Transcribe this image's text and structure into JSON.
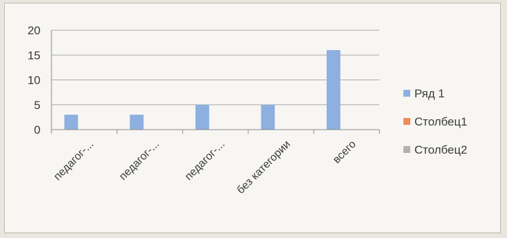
{
  "chart_data": {
    "type": "bar",
    "categories": [
      "педагог-...",
      "педагог-...",
      "педагог-...",
      "без категории",
      "всего"
    ],
    "series": [
      {
        "name": "Ряд 1",
        "values": [
          3,
          3,
          5,
          5,
          16
        ],
        "color": "#8eb0e0"
      },
      {
        "name": "Столбец1",
        "values": [
          null,
          null,
          null,
          null,
          null
        ],
        "color": "#f08c5a"
      },
      {
        "name": "Столбец2",
        "values": [
          null,
          null,
          null,
          null,
          null
        ],
        "color": "#b4b0b4"
      }
    ],
    "ylim": [
      0,
      20
    ],
    "yticks": [
      "0",
      "5",
      "10",
      "15",
      "20"
    ],
    "grid": true,
    "legend_position": "right"
  }
}
